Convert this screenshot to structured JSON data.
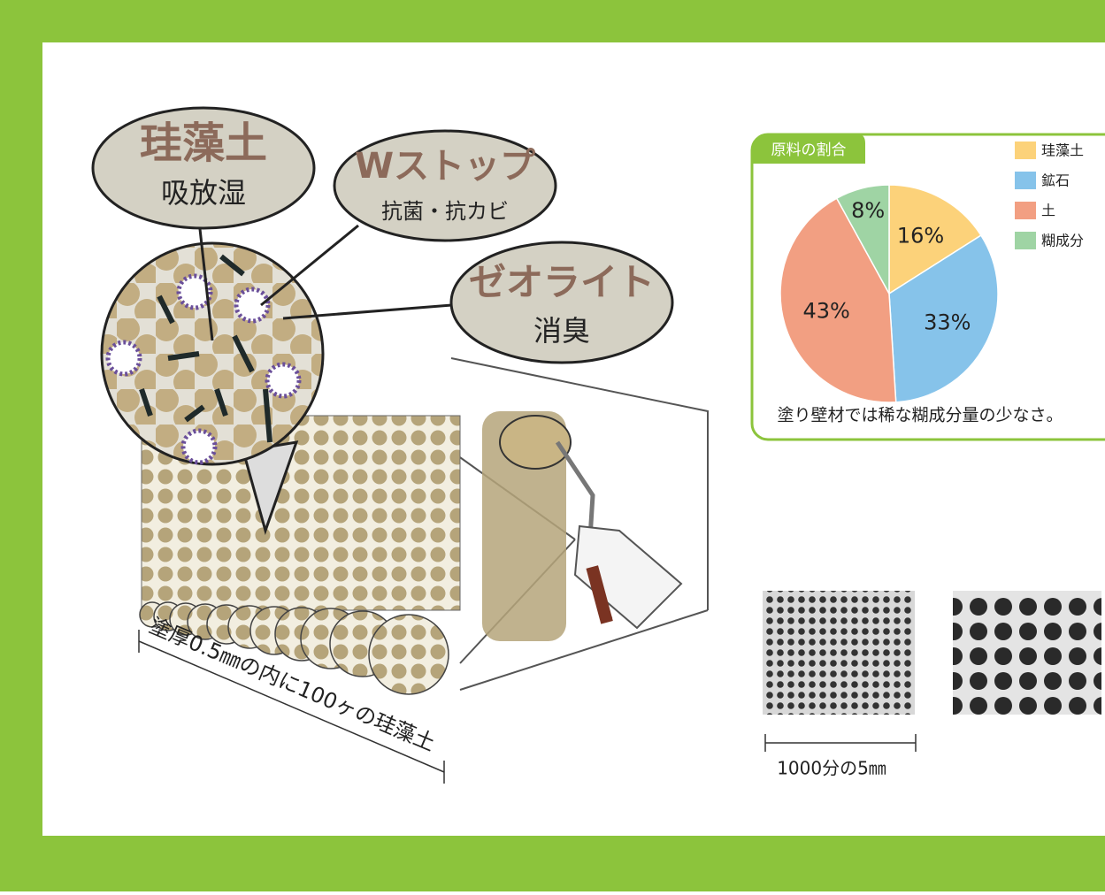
{
  "illustration": {
    "bubbles": [
      {
        "title": "珪藻土",
        "subtitle": "吸放湿"
      },
      {
        "title": "Wストップ",
        "subtitle": "抗菌・抗カビ"
      },
      {
        "title": "ゼオライト",
        "subtitle": "消臭"
      }
    ],
    "thickness_note": "塗厚0.5㎜の内に100ヶの珪藻土",
    "scale_note": "1000分の5㎜"
  },
  "chart_data": {
    "type": "pie",
    "title": "原料の割合",
    "categories": [
      "珪藻土",
      "鉱石",
      "土",
      "糊成分"
    ],
    "values": [
      16,
      33,
      43,
      8
    ],
    "value_labels": [
      "16%",
      "33%",
      "43%",
      "8%"
    ],
    "colors": [
      "#fcd27a",
      "#86c3ea",
      "#f29f82",
      "#9fd4a4"
    ],
    "annotation": "塗り壁材では稀な糊成分量の少なさ。",
    "legend": "right"
  }
}
